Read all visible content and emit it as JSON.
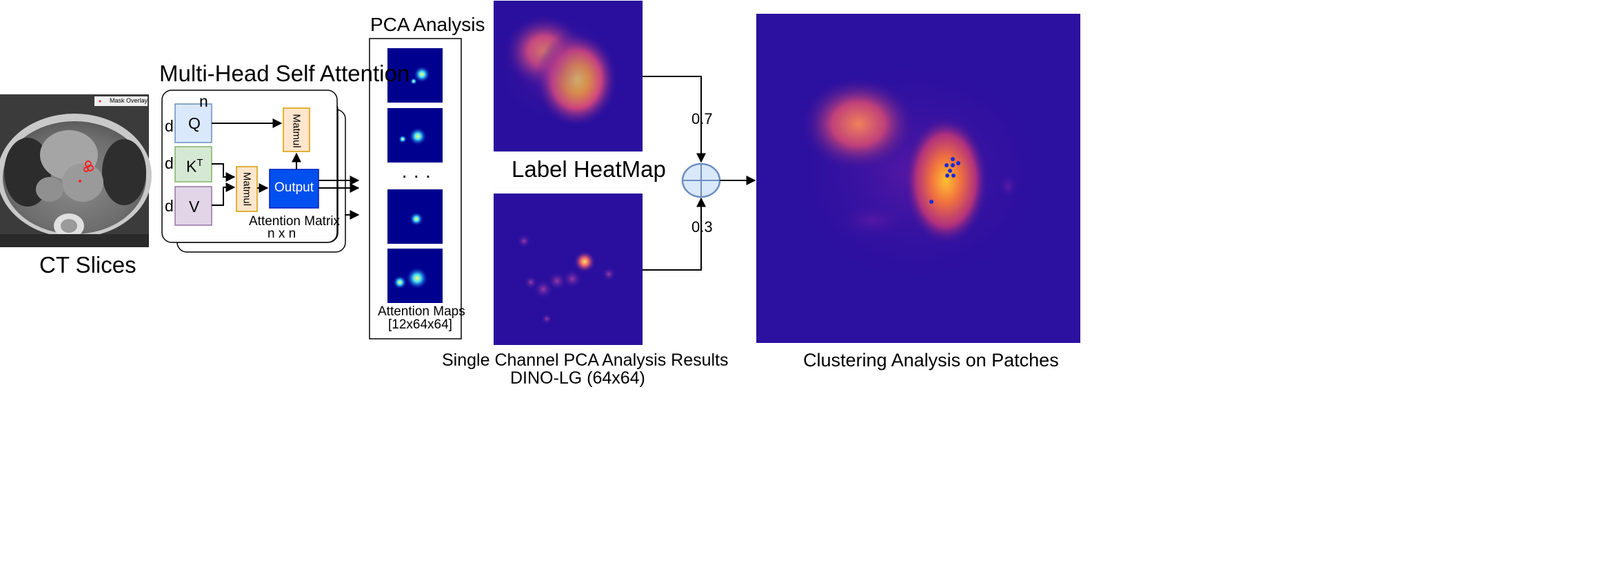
{
  "ct": {
    "title": "CT Slices",
    "legend": "Mask Overlay"
  },
  "mhsa": {
    "title": "Multi-Head Self Attention",
    "dim_n": "n",
    "dim_d1": "d",
    "dim_d2": "d",
    "dim_d3": "d",
    "q": "Q",
    "k": "K",
    "k_sup": "T",
    "v": "V",
    "matmul_top": "Matmul",
    "matmul_mid": "Matmul",
    "output": "Output",
    "attn_line1": "Attention Matrix",
    "attn_line2": "n x n",
    "colors": {
      "q": "#dae8fc",
      "k": "#d5e8d4",
      "v": "#e1d5e7",
      "matmul": "#ffe6cc",
      "output": "#0050ef"
    }
  },
  "pca": {
    "title": "PCA Analysis",
    "ellipsis": "· · ·",
    "caption_line1": "Attention Maps",
    "caption_line2": "[12x64x64]"
  },
  "heatmaps": {
    "label_title": "Label HeatMap",
    "pca_line1": "Single Channel PCA Analysis Results",
    "pca_line2": "DINO-LG (64x64)"
  },
  "fusion": {
    "weight_top": "0.7",
    "weight_bottom": "0.3"
  },
  "clustering": {
    "title": "Clustering Analysis on Patches"
  }
}
